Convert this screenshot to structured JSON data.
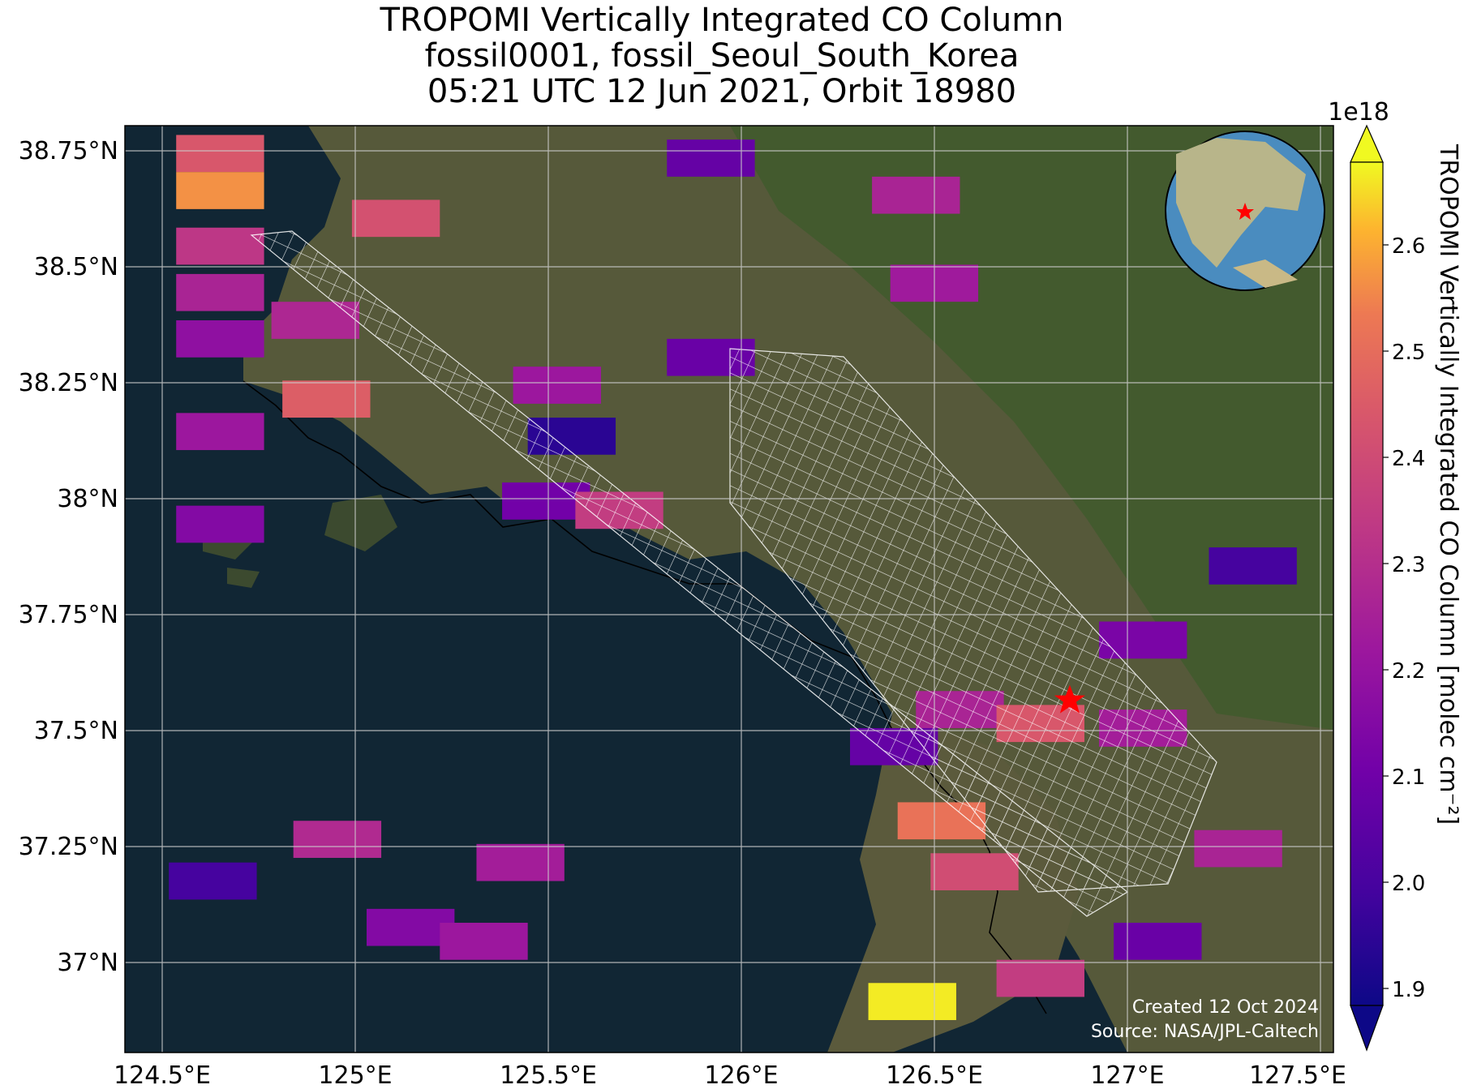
{
  "title": {
    "line1": "TROPOMI Vertically Integrated CO Column",
    "line2": "fossil0001, fossil_Seoul_South_Korea",
    "line3": "05:21 UTC 12 Jun 2021, Orbit 18980"
  },
  "axes": {
    "lat_ticks": [
      "38.75°N",
      "38.5°N",
      "38.25°N",
      "38°N",
      "37.75°N",
      "37.5°N",
      "37.25°N",
      "37°N"
    ],
    "lon_ticks": [
      "124.5°E",
      "125°E",
      "125.5°E",
      "126°E",
      "126.5°E",
      "127°E",
      "127.5°E"
    ]
  },
  "colorbar": {
    "label": "TROPOMI Vertically Integrated CO Column [molec cm⁻²]",
    "exponent": "1e18",
    "ticks": [
      "2.6",
      "2.5",
      "2.4",
      "2.3",
      "2.2",
      "2.1",
      "2.0",
      "1.9"
    ],
    "colormap": "plasma"
  },
  "annotations": {
    "created": "Created 12 Oct 2024",
    "source": "Source: NASA/JPL-Caltech"
  },
  "colors": {
    "target_marker": "#ff0000",
    "grid": "#cccccc",
    "overlay_grid": "#ffffff"
  },
  "chart_data": {
    "type": "heatmap",
    "projection": "geographic",
    "xlim": [
      124.4,
      127.7
    ],
    "ylim": [
      36.81,
      38.81
    ],
    "target_site": {
      "lon": 126.98,
      "lat": 37.57,
      "marker": "star"
    },
    "pixels": [
      {
        "lon": 124.66,
        "lat": 38.75,
        "value": 2.38
      },
      {
        "lon": 124.66,
        "lat": 38.67,
        "value": 2.52
      },
      {
        "lon": 124.66,
        "lat": 38.55,
        "value": 2.28
      },
      {
        "lon": 124.66,
        "lat": 38.45,
        "value": 2.22
      },
      {
        "lon": 124.66,
        "lat": 38.35,
        "value": 2.15
      },
      {
        "lon": 124.66,
        "lat": 38.15,
        "value": 2.18
      },
      {
        "lon": 124.66,
        "lat": 37.95,
        "value": 2.12
      },
      {
        "lon": 124.95,
        "lat": 38.22,
        "value": 2.4
      },
      {
        "lon": 125.14,
        "lat": 38.61,
        "value": 2.36
      },
      {
        "lon": 124.92,
        "lat": 38.39,
        "value": 2.23
      },
      {
        "lon": 125.58,
        "lat": 38.25,
        "value": 2.18
      },
      {
        "lon": 125.55,
        "lat": 38.0,
        "value": 2.08
      },
      {
        "lon": 125.62,
        "lat": 38.14,
        "value": 1.93
      },
      {
        "lon": 125.75,
        "lat": 37.98,
        "value": 2.3
      },
      {
        "lon": 126.56,
        "lat": 38.66,
        "value": 2.22
      },
      {
        "lon": 126.61,
        "lat": 38.47,
        "value": 2.19
      },
      {
        "lon": 126.0,
        "lat": 38.74,
        "value": 2.05
      },
      {
        "lon": 126.0,
        "lat": 38.31,
        "value": 2.06
      },
      {
        "lon": 127.18,
        "lat": 37.7,
        "value": 2.1
      },
      {
        "lon": 127.48,
        "lat": 37.86,
        "value": 1.98
      },
      {
        "lon": 126.68,
        "lat": 37.55,
        "value": 2.22
      },
      {
        "lon": 126.9,
        "lat": 37.52,
        "value": 2.38
      },
      {
        "lon": 126.63,
        "lat": 37.31,
        "value": 2.46
      },
      {
        "lon": 126.72,
        "lat": 37.2,
        "value": 2.35
      },
      {
        "lon": 126.5,
        "lat": 37.47,
        "value": 2.05
      },
      {
        "lon": 127.18,
        "lat": 37.51,
        "value": 2.2
      },
      {
        "lon": 125.48,
        "lat": 37.22,
        "value": 2.2
      },
      {
        "lon": 124.98,
        "lat": 37.27,
        "value": 2.24
      },
      {
        "lon": 124.64,
        "lat": 37.18,
        "value": 1.98
      },
      {
        "lon": 125.18,
        "lat": 37.08,
        "value": 2.12
      },
      {
        "lon": 125.38,
        "lat": 37.05,
        "value": 2.18
      },
      {
        "lon": 126.55,
        "lat": 36.92,
        "value": 2.66
      },
      {
        "lon": 126.9,
        "lat": 36.97,
        "value": 2.3
      },
      {
        "lon": 127.22,
        "lat": 37.05,
        "value": 2.06
      },
      {
        "lon": 127.44,
        "lat": 37.25,
        "value": 2.22
      }
    ]
  }
}
